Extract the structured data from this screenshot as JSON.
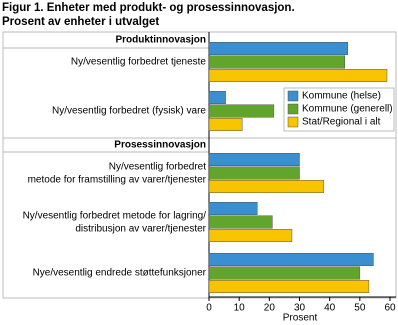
{
  "chart_data": {
    "type": "hbar",
    "title": "Figur 1. Enheter med produkt- og prosessinnovasjon.",
    "subtitle": "Prosent av enheter i utvalget",
    "sections": [
      "Produktinnovasjon",
      "Prosessinnovasjon"
    ],
    "categories": [
      "Ny/vesentlig forbedret tjeneste",
      "Ny/vesentlig forbedret (fysisk) vare",
      "Ny/vesentlig forbedret\nmetode for framstilling av varer/tjenester",
      "Ny/vesentlig forbedret metode for lagring/\ndistribusjon av varer/tjenester",
      "Nye/vesentlig endrede støttefunksjoner"
    ],
    "series": [
      {
        "name": "Kommune (helse)",
        "color": "#3a8fd0",
        "values": [
          46,
          5.5,
          30,
          16,
          54.5
        ]
      },
      {
        "name": "Kommune (generell)",
        "color": "#62a52c",
        "values": [
          45,
          21.5,
          30,
          21,
          50
        ]
      },
      {
        "name": "Stat/Regional i alt",
        "color": "#f8c400",
        "values": [
          59,
          11,
          38,
          27.5,
          53
        ]
      }
    ],
    "xlabel": "Prosent",
    "xlim": [
      0,
      60
    ],
    "xticks": [
      0,
      10,
      20,
      30,
      40,
      50,
      60
    ],
    "grid": false
  }
}
